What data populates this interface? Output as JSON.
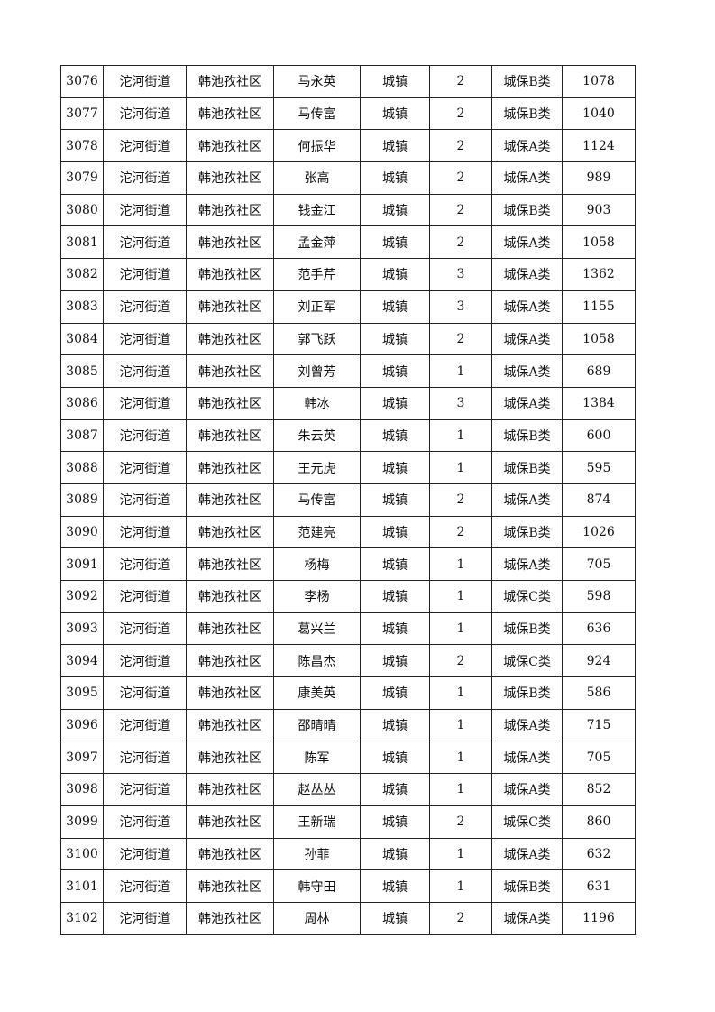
{
  "table": {
    "rows": [
      [
        "3076",
        "沱河街道",
        "韩池孜社区",
        "马永英",
        "城镇",
        "2",
        "城保B类",
        "1078"
      ],
      [
        "3077",
        "沱河街道",
        "韩池孜社区",
        "马传富",
        "城镇",
        "2",
        "城保B类",
        "1040"
      ],
      [
        "3078",
        "沱河街道",
        "韩池孜社区",
        "何振华",
        "城镇",
        "2",
        "城保A类",
        "1124"
      ],
      [
        "3079",
        "沱河街道",
        "韩池孜社区",
        "张高",
        "城镇",
        "2",
        "城保A类",
        "989"
      ],
      [
        "3080",
        "沱河街道",
        "韩池孜社区",
        "钱金江",
        "城镇",
        "2",
        "城保B类",
        "903"
      ],
      [
        "3081",
        "沱河街道",
        "韩池孜社区",
        "孟金萍",
        "城镇",
        "2",
        "城保A类",
        "1058"
      ],
      [
        "3082",
        "沱河街道",
        "韩池孜社区",
        "范手芹",
        "城镇",
        "3",
        "城保A类",
        "1362"
      ],
      [
        "3083",
        "沱河街道",
        "韩池孜社区",
        "刘正军",
        "城镇",
        "3",
        "城保A类",
        "1155"
      ],
      [
        "3084",
        "沱河街道",
        "韩池孜社区",
        "郭飞跃",
        "城镇",
        "2",
        "城保A类",
        "1058"
      ],
      [
        "3085",
        "沱河街道",
        "韩池孜社区",
        "刘曾芳",
        "城镇",
        "1",
        "城保A类",
        "689"
      ],
      [
        "3086",
        "沱河街道",
        "韩池孜社区",
        "韩冰",
        "城镇",
        "3",
        "城保A类",
        "1384"
      ],
      [
        "3087",
        "沱河街道",
        "韩池孜社区",
        "朱云英",
        "城镇",
        "1",
        "城保B类",
        "600"
      ],
      [
        "3088",
        "沱河街道",
        "韩池孜社区",
        "王元虎",
        "城镇",
        "1",
        "城保B类",
        "595"
      ],
      [
        "3089",
        "沱河街道",
        "韩池孜社区",
        "马传富",
        "城镇",
        "2",
        "城保A类",
        "874"
      ],
      [
        "3090",
        "沱河街道",
        "韩池孜社区",
        "范建亮",
        "城镇",
        "2",
        "城保B类",
        "1026"
      ],
      [
        "3091",
        "沱河街道",
        "韩池孜社区",
        "杨梅",
        "城镇",
        "1",
        "城保A类",
        "705"
      ],
      [
        "3092",
        "沱河街道",
        "韩池孜社区",
        "李杨",
        "城镇",
        "1",
        "城保C类",
        "598"
      ],
      [
        "3093",
        "沱河街道",
        "韩池孜社区",
        "葛兴兰",
        "城镇",
        "1",
        "城保B类",
        "636"
      ],
      [
        "3094",
        "沱河街道",
        "韩池孜社区",
        "陈昌杰",
        "城镇",
        "2",
        "城保C类",
        "924"
      ],
      [
        "3095",
        "沱河街道",
        "韩池孜社区",
        "康美英",
        "城镇",
        "1",
        "城保B类",
        "586"
      ],
      [
        "3096",
        "沱河街道",
        "韩池孜社区",
        "邵晴晴",
        "城镇",
        "1",
        "城保A类",
        "715"
      ],
      [
        "3097",
        "沱河街道",
        "韩池孜社区",
        "陈军",
        "城镇",
        "1",
        "城保A类",
        "705"
      ],
      [
        "3098",
        "沱河街道",
        "韩池孜社区",
        "赵丛丛",
        "城镇",
        "1",
        "城保A类",
        "852"
      ],
      [
        "3099",
        "沱河街道",
        "韩池孜社区",
        "王新瑞",
        "城镇",
        "2",
        "城保C类",
        "860"
      ],
      [
        "3100",
        "沱河街道",
        "韩池孜社区",
        "孙菲",
        "城镇",
        "1",
        "城保A类",
        "632"
      ],
      [
        "3101",
        "沱河街道",
        "韩池孜社区",
        "韩守田",
        "城镇",
        "1",
        "城保B类",
        "631"
      ],
      [
        "3102",
        "沱河街道",
        "韩池孜社区",
        "周林",
        "城镇",
        "2",
        "城保A类",
        "1196"
      ]
    ]
  }
}
